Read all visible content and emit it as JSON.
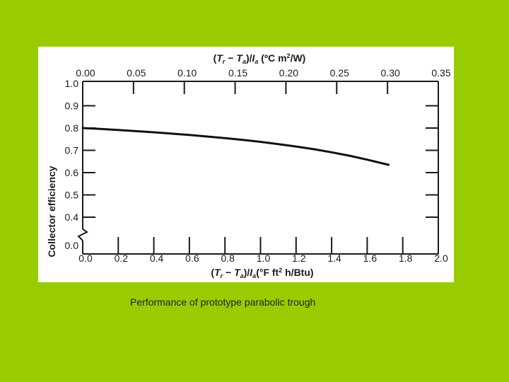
{
  "caption": "Performance of prototype parabolic trough",
  "chart_data": {
    "type": "line",
    "ylabel": "Collector efficiency",
    "xlabel_bottom": {
      "parts": [
        "(",
        "T",
        "r",
        " − ",
        "T",
        "a",
        ")/",
        "I",
        "a",
        "(°F ft",
        "2",
        " h/Btu)"
      ]
    },
    "xlabel_top": {
      "parts": [
        "(",
        "T",
        "r",
        " − ",
        "T",
        "a",
        ")/",
        "I",
        "a",
        " (ºC m",
        "2",
        "/W)"
      ]
    },
    "xlim": [
      0.0,
      2.0
    ],
    "x_ticks": [
      "0.0",
      "0.2",
      "0.4",
      "0.6",
      "0.8",
      "1.0",
      "1.2",
      "1.4",
      "1.6",
      "1.8",
      "2.0"
    ],
    "x_tick_values": [
      0.0,
      0.2,
      0.4,
      0.6,
      0.8,
      1.0,
      1.2,
      1.4,
      1.6,
      1.8,
      2.0
    ],
    "x2lim": [
      0.0,
      0.35
    ],
    "x2_ticks": [
      "0.00",
      "0.05",
      "0.10",
      "0.15",
      "0.20",
      "0.25",
      "0.30",
      "0.35"
    ],
    "x2_tick_values": [
      0.0,
      0.05,
      0.1,
      0.15,
      0.2,
      0.25,
      0.3,
      0.35
    ],
    "ylim": [
      0.0,
      1.0
    ],
    "y_broken_axis": true,
    "y_ticks": [
      "0.0",
      "0.4",
      "0.5",
      "0.6",
      "0.7",
      "0.8",
      "0.9",
      "1.0"
    ],
    "y_tick_values": [
      0.0,
      0.4,
      0.5,
      0.6,
      0.7,
      0.8,
      0.9,
      1.0
    ],
    "grid": false,
    "series": [
      {
        "x": [
          0.0,
          0.1,
          0.2,
          0.3,
          0.4,
          0.5,
          0.6,
          0.7,
          0.8,
          0.9,
          1.0,
          1.1,
          1.2,
          1.3,
          1.4,
          1.5,
          1.6,
          1.72
        ],
        "y": [
          0.8,
          0.796,
          0.791,
          0.786,
          0.781,
          0.775,
          0.769,
          0.762,
          0.755,
          0.747,
          0.738,
          0.728,
          0.717,
          0.705,
          0.691,
          0.676,
          0.658,
          0.635
        ]
      }
    ]
  }
}
